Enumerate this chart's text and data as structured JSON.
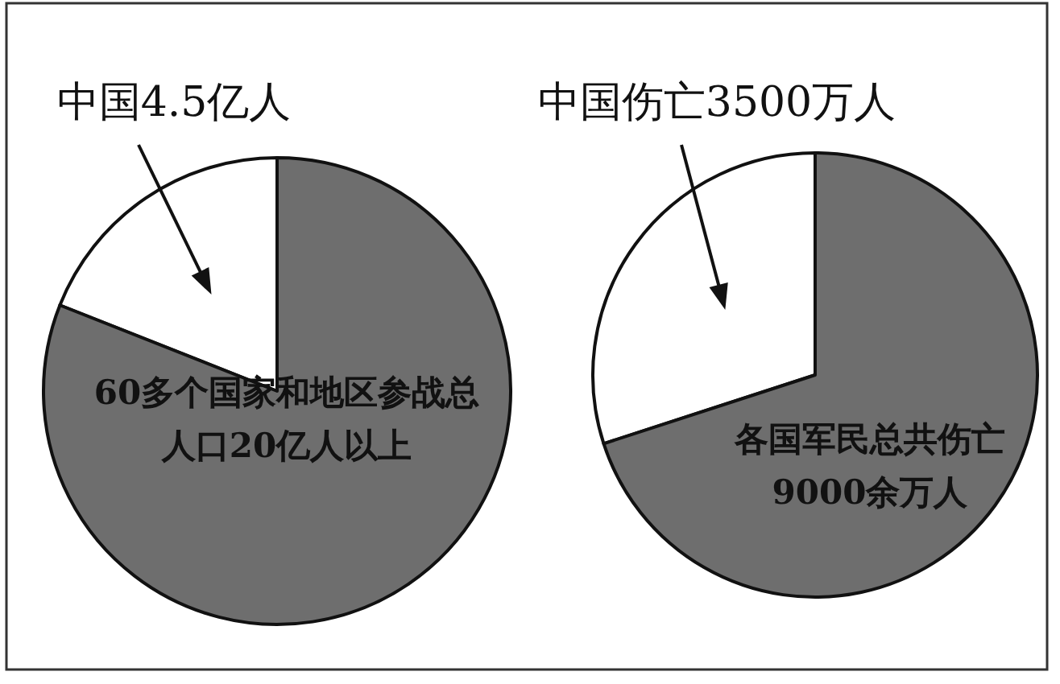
{
  "chart_data": [
    {
      "type": "pie",
      "categories": [
        "中国4.5亿人",
        "60多个国家和地区参战总人口20亿人以上"
      ],
      "values": [
        19,
        81
      ],
      "colors": [
        "#ffffff",
        "#6e6e6e"
      ]
    },
    {
      "type": "pie",
      "categories": [
        "中国伤亡3500万人",
        "各国军民总共伤亡9000余万人"
      ],
      "values": [
        30,
        70
      ],
      "colors": [
        "#ffffff",
        "#6e6e6e"
      ]
    }
  ]
}
